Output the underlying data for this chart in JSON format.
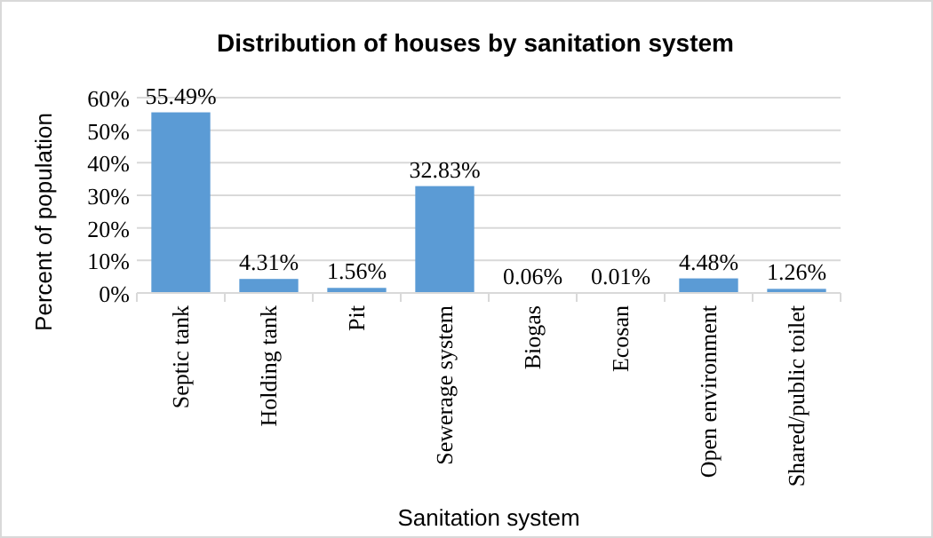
{
  "chart_data": {
    "type": "bar",
    "title": "Distribution of houses by sanitation system",
    "xlabel": "Sanitation system",
    "ylabel": "Percent of population",
    "categories": [
      "Septic tank",
      "Holding tank",
      "Pit",
      "Sewerage system",
      "Biogas",
      "Ecosan",
      "Open environment",
      "Shared/public toilet"
    ],
    "values": [
      55.49,
      4.31,
      1.56,
      32.83,
      0.06,
      0.01,
      4.48,
      1.26
    ],
    "colors": [
      "#5b9bd5",
      "#5b9bd5",
      "#5b9bd5",
      "#5b9bd5",
      "#ffc000",
      "#5b9bd5",
      "#5b9bd5",
      "#5b9bd5"
    ],
    "value_labels": [
      "55.49%",
      "4.31%",
      "1.56%",
      "32.83%",
      "0.06%",
      "0.01%",
      "4.48%",
      "1.26%"
    ],
    "ylim": [
      0,
      60
    ],
    "yticks": [
      {
        "value": 0,
        "label": "0%"
      },
      {
        "value": 10,
        "label": "10%"
      },
      {
        "value": 20,
        "label": "20%"
      },
      {
        "value": 30,
        "label": "30%"
      },
      {
        "value": 40,
        "label": "40%"
      },
      {
        "value": 50,
        "label": "50%"
      },
      {
        "value": 60,
        "label": "60%"
      }
    ],
    "grid": "y"
  }
}
